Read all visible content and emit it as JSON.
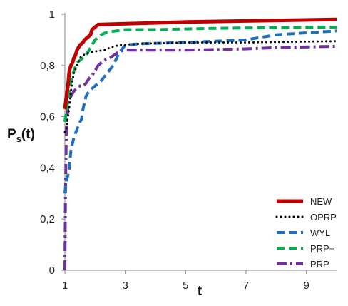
{
  "chart_data": {
    "type": "line",
    "title": "",
    "xlabel": "t",
    "ylabel_main": "P",
    "ylabel_sub": "s",
    "ylabel_tail": "(t)",
    "xlim": [
      1,
      10
    ],
    "ylim": [
      0,
      1
    ],
    "x_ticks": [
      1,
      3,
      5,
      7,
      9
    ],
    "x_tick_labels": [
      "1",
      "3",
      "5",
      "7",
      "9"
    ],
    "y_ticks": [
      0,
      0.2,
      0.4,
      0.6,
      0.8,
      1
    ],
    "y_tick_labels": [
      "0",
      "0,2",
      "0,4",
      "0,6",
      "0,8",
      "1"
    ],
    "grid": false,
    "legend_position": "bottom-right",
    "series": [
      {
        "name": "NEW",
        "color": "#C00000",
        "style": "solid",
        "x": [
          1.0,
          1.03,
          1.05,
          1.1,
          1.15,
          1.2,
          1.25,
          1.3,
          1.35,
          1.4,
          1.5,
          1.6,
          1.65,
          1.75,
          1.85,
          1.9,
          2.0,
          2.1,
          5.0,
          10.0
        ],
        "y": [
          0.63,
          0.66,
          0.68,
          0.72,
          0.78,
          0.8,
          0.81,
          0.83,
          0.84,
          0.86,
          0.88,
          0.89,
          0.9,
          0.91,
          0.92,
          0.94,
          0.95,
          0.96,
          0.97,
          0.98
        ]
      },
      {
        "name": "OPRP",
        "color": "#000000",
        "style": "dotted",
        "x": [
          1.0,
          1.05,
          1.1,
          1.15,
          1.2,
          1.25,
          1.3,
          1.4,
          1.5,
          1.6,
          1.8,
          2.0,
          2.3,
          2.5,
          2.8,
          3.5,
          5.0,
          7.0,
          10.0
        ],
        "y": [
          0.54,
          0.55,
          0.6,
          0.64,
          0.7,
          0.74,
          0.77,
          0.8,
          0.83,
          0.84,
          0.85,
          0.855,
          0.86,
          0.87,
          0.88,
          0.885,
          0.89,
          0.89,
          0.895
        ]
      },
      {
        "name": "WYL",
        "color": "#1F6FBF",
        "style": "dashed",
        "x": [
          1.0,
          1.02,
          1.05,
          1.1,
          1.15,
          1.2,
          1.3,
          1.4,
          1.5,
          1.55,
          1.6,
          1.7,
          1.8,
          1.9,
          2.0,
          2.2,
          2.4,
          2.6,
          2.8,
          3.0,
          3.5,
          5.0,
          7.0,
          8.0,
          10.0
        ],
        "y": [
          0.3,
          0.32,
          0.35,
          0.37,
          0.4,
          0.47,
          0.52,
          0.55,
          0.58,
          0.59,
          0.63,
          0.68,
          0.7,
          0.71,
          0.72,
          0.74,
          0.77,
          0.8,
          0.85,
          0.88,
          0.885,
          0.89,
          0.9,
          0.92,
          0.935
        ]
      },
      {
        "name": "PRP+",
        "color": "#00B050",
        "style": "dashed",
        "x": [
          1.0,
          1.05,
          1.1,
          1.15,
          1.2,
          1.3,
          1.4,
          1.5,
          1.6,
          1.7,
          1.8,
          1.9,
          2.0,
          2.2,
          2.4,
          2.7,
          3.0,
          4.0,
          6.0,
          8.0,
          10.0
        ],
        "y": [
          0.58,
          0.62,
          0.66,
          0.7,
          0.74,
          0.78,
          0.81,
          0.82,
          0.83,
          0.84,
          0.86,
          0.88,
          0.9,
          0.92,
          0.93,
          0.935,
          0.94,
          0.94,
          0.945,
          0.948,
          0.95
        ]
      },
      {
        "name": "PRP",
        "color": "#7030A0",
        "style": "dashdot",
        "x": [
          1.0,
          1.02,
          1.05,
          1.08,
          1.1,
          1.15,
          1.2,
          1.3,
          1.4,
          1.5,
          1.6,
          1.7,
          1.8,
          1.9,
          2.0,
          2.1,
          2.3,
          2.5,
          2.8,
          3.0,
          5.0,
          7.0,
          8.0,
          10.0
        ],
        "y": [
          0.0,
          0.3,
          0.55,
          0.6,
          0.63,
          0.66,
          0.68,
          0.7,
          0.71,
          0.72,
          0.72,
          0.73,
          0.75,
          0.76,
          0.78,
          0.8,
          0.82,
          0.83,
          0.855,
          0.86,
          0.86,
          0.865,
          0.87,
          0.875
        ]
      }
    ]
  }
}
